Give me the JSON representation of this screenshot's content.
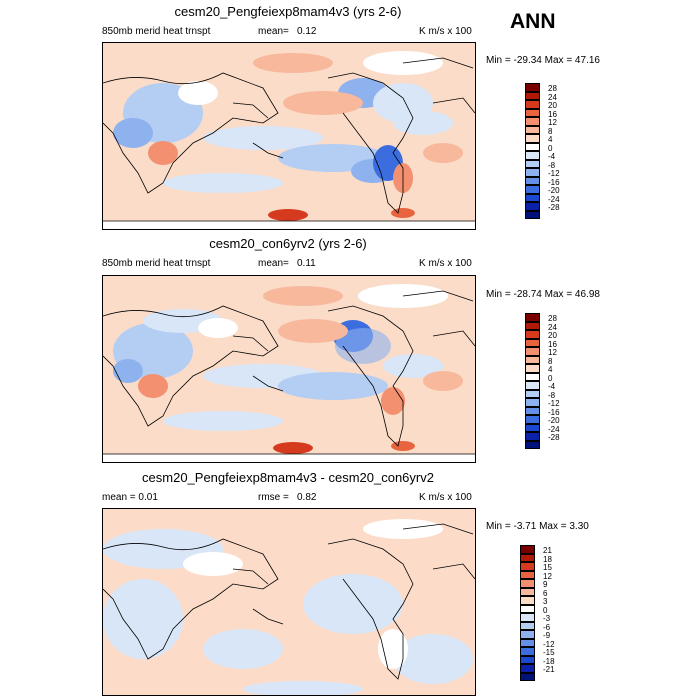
{
  "season": "ANN",
  "panels": [
    {
      "title": "cesm20_Pengfeiexp8mam4v3 (yrs 2-6)",
      "left_label": "850mb merid heat trnspt",
      "stat_label": "mean=",
      "stat_value": "0.12",
      "units": "K m/s x 100",
      "minmax": "Min = -29.34 Max =  47.16",
      "colorbar": {
        "labels": [
          "28",
          "24",
          "20",
          "16",
          "12",
          "8",
          "4",
          "0",
          "-4",
          "-8",
          "-12",
          "-16",
          "-20",
          "-24",
          "-28"
        ],
        "colors": [
          "#7a0000",
          "#b01808",
          "#d63a1e",
          "#e8643f",
          "#f39070",
          "#f8b89c",
          "#fcdcc9",
          "#ffffff",
          "#d8e6f8",
          "#b4cdf3",
          "#8eb2ee",
          "#6490e6",
          "#3c6ddf",
          "#1b48cf",
          "#0a21a8",
          "#00127a"
        ]
      }
    },
    {
      "title": "cesm20_con6yrv2 (yrs 2-6)",
      "left_label": "850mb merid heat trnspt",
      "stat_label": "mean=",
      "stat_value": "0.11",
      "units": "K m/s x 100",
      "minmax": "Min = -28.74 Max =  46.98",
      "colorbar": {
        "labels": [
          "28",
          "24",
          "20",
          "16",
          "12",
          "8",
          "4",
          "0",
          "-4",
          "-8",
          "-12",
          "-16",
          "-20",
          "-24",
          "-28"
        ],
        "colors": [
          "#7a0000",
          "#b01808",
          "#d63a1e",
          "#e8643f",
          "#f39070",
          "#f8b89c",
          "#fcdcc9",
          "#ffffff",
          "#d8e6f8",
          "#b4cdf3",
          "#8eb2ee",
          "#6490e6",
          "#3c6ddf",
          "#1b48cf",
          "#0a21a8",
          "#00127a"
        ]
      }
    },
    {
      "title": "cesm20_Pengfeiexp8mam4v3 - cesm20_con6yrv2",
      "left_label": "mean =   0.01",
      "stat_label": "rmse =",
      "stat_value": "0.82",
      "units": "K m/s x 100",
      "minmax": "Min =  -3.71 Max =   3.30",
      "colorbar": {
        "labels": [
          "21",
          "18",
          "15",
          "12",
          "9",
          "6",
          "3",
          "0",
          "-3",
          "-6",
          "-9",
          "-12",
          "-15",
          "-18",
          "-21"
        ],
        "colors": [
          "#7a0000",
          "#b01808",
          "#d63a1e",
          "#e8643f",
          "#f39070",
          "#f8b89c",
          "#fcdcc9",
          "#ffffff",
          "#d8e6f8",
          "#b4cdf3",
          "#8eb2ee",
          "#6490e6",
          "#3c6ddf",
          "#1b48cf",
          "#0a21a8",
          "#00127a"
        ]
      }
    }
  ]
}
